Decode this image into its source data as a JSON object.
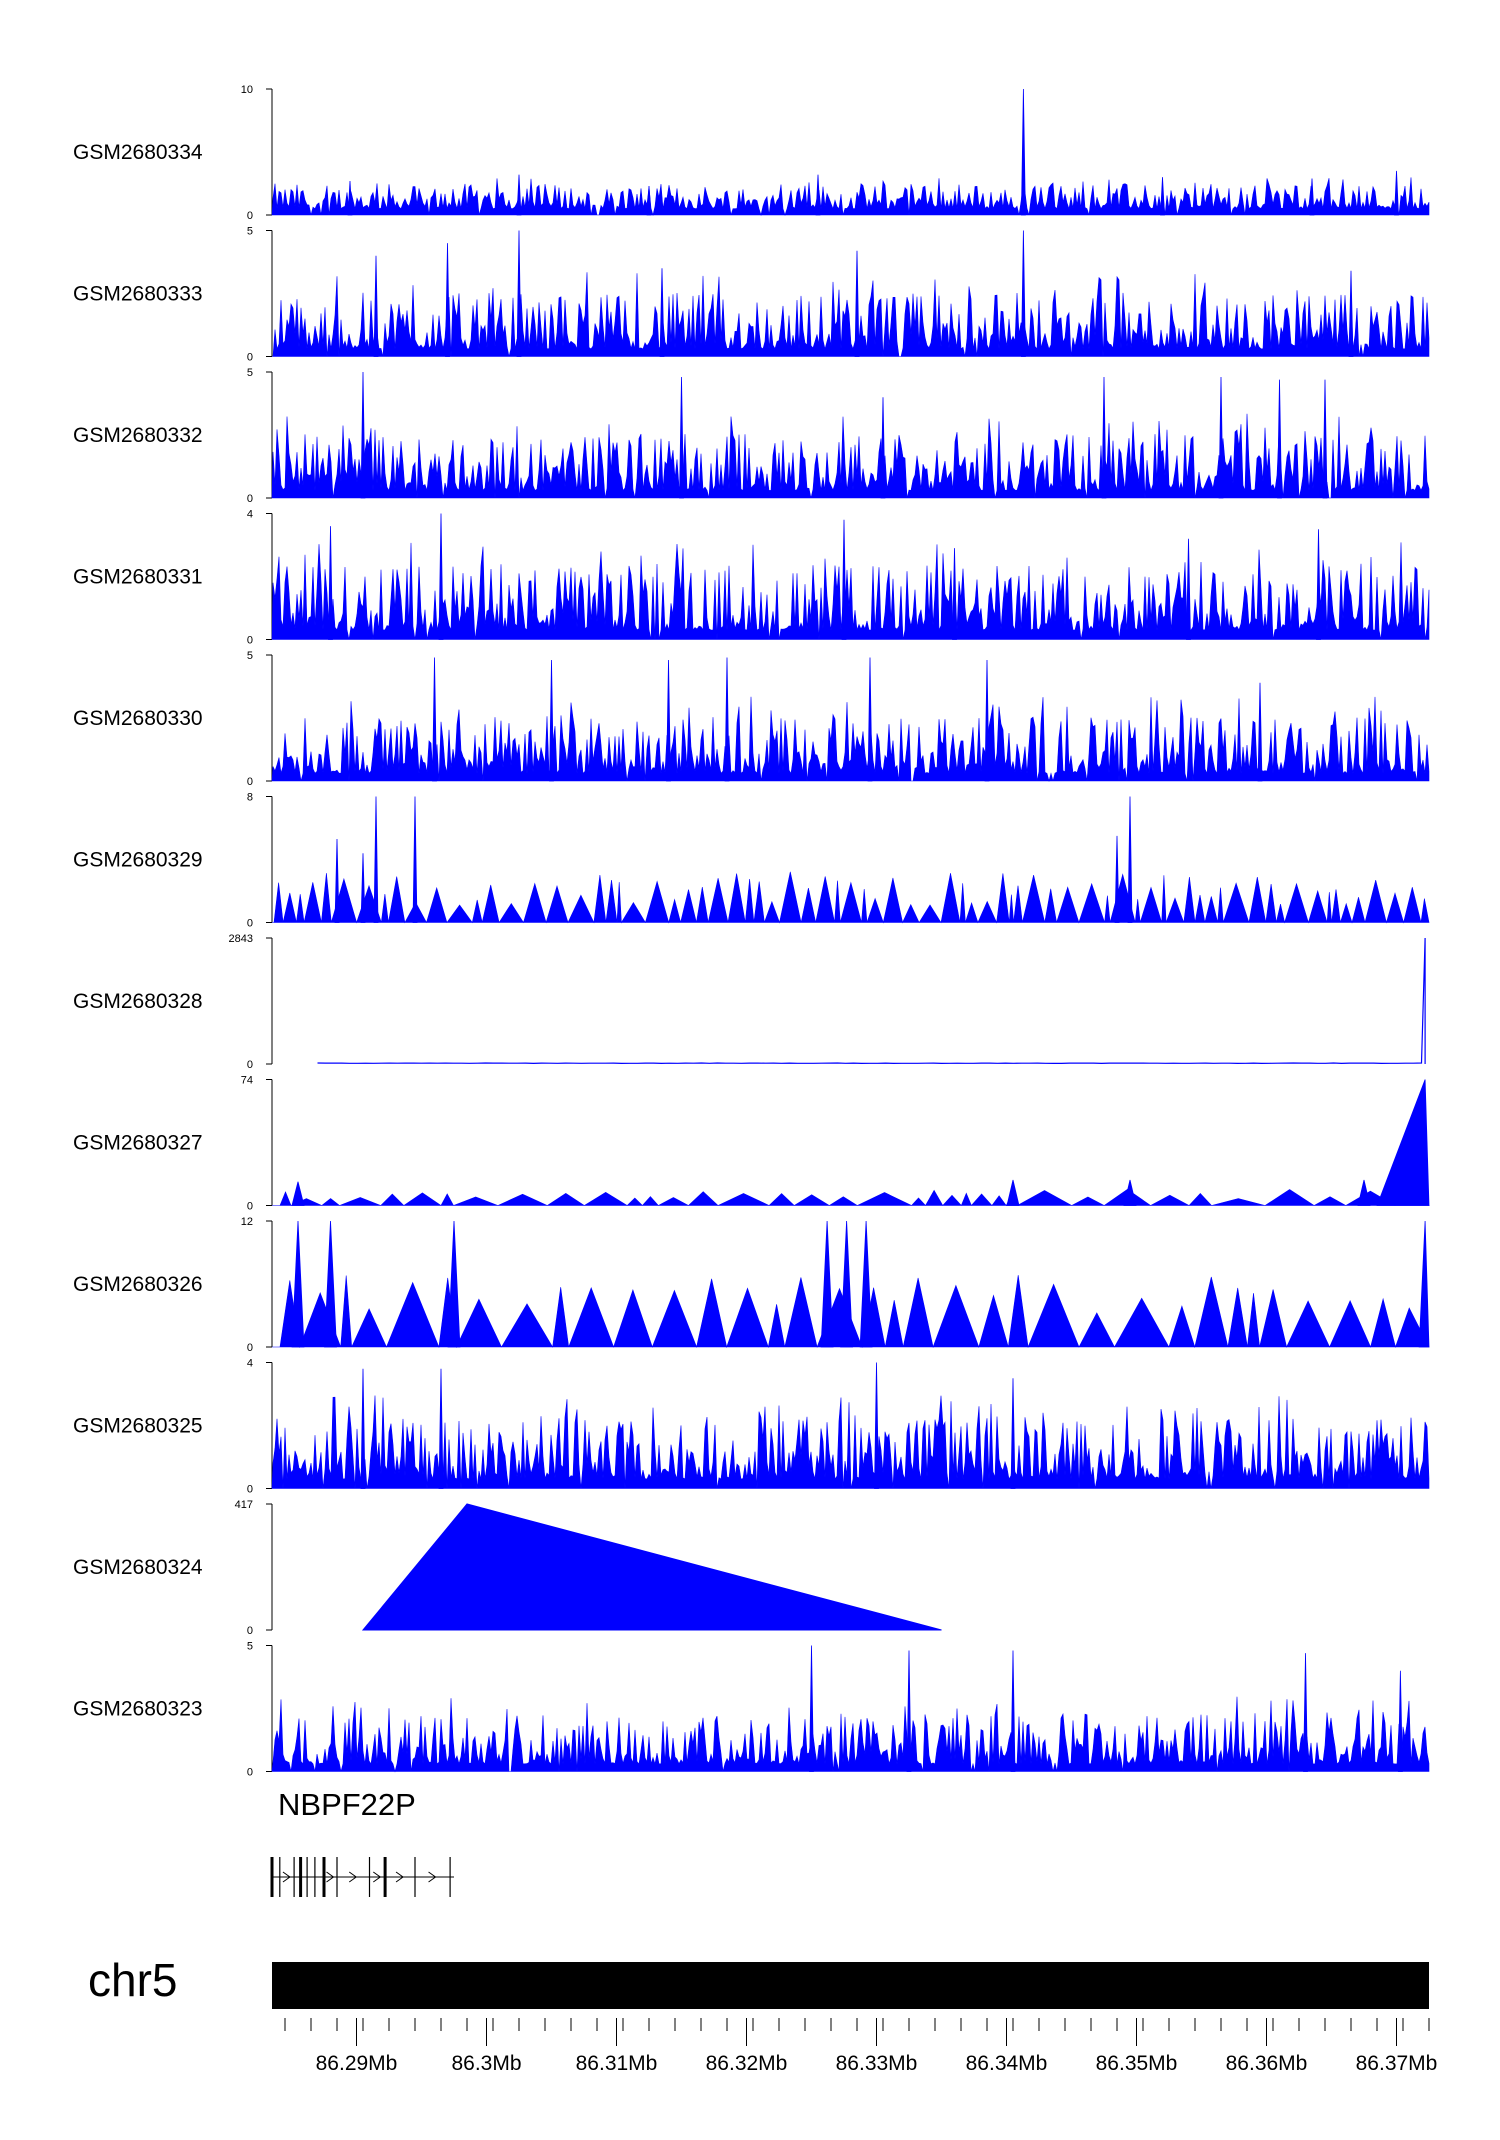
{
  "chart_data": {
    "type": "area",
    "colors": {
      "signal": "#0000ff",
      "axis": "#000000",
      "ideogram": "#000000"
    },
    "x_range": [
      86.2835,
      86.3725
    ],
    "x_unit": "Mb",
    "tracks": [
      {
        "name": "GSM2680334",
        "ylim": [
          0,
          10
        ],
        "ymin_label": "0",
        "ymax_label": "10",
        "profile": "dense",
        "baseline": 0.5,
        "typical_max": 2.5,
        "spikes": [
          {
            "x": 86.2895,
            "y": 2.7
          },
          {
            "x": 86.3025,
            "y": 3.2
          },
          {
            "x": 86.3125,
            "y": 2.3
          },
          {
            "x": 86.3255,
            "y": 3.2
          },
          {
            "x": 86.3413,
            "y": 10
          },
          {
            "x": 86.352,
            "y": 3.0
          },
          {
            "x": 86.3635,
            "y": 2.9
          },
          {
            "x": 86.37,
            "y": 3.5
          }
        ]
      },
      {
        "name": "GSM2680333",
        "ylim": [
          0,
          5
        ],
        "ymin_label": "0",
        "ymax_label": "5",
        "profile": "dense",
        "baseline": 0.3,
        "typical_max": 2.8,
        "spikes": [
          {
            "x": 86.2915,
            "y": 4.0
          },
          {
            "x": 86.297,
            "y": 4.5
          },
          {
            "x": 86.3025,
            "y": 5.0
          },
          {
            "x": 86.3135,
            "y": 3.5
          },
          {
            "x": 86.3285,
            "y": 4.2
          },
          {
            "x": 86.3413,
            "y": 5.0
          },
          {
            "x": 86.3665,
            "y": 3.4
          }
        ]
      },
      {
        "name": "GSM2680332",
        "ylim": [
          0,
          5
        ],
        "ymin_label": "0",
        "ymax_label": "5",
        "profile": "dense",
        "baseline": 0.3,
        "typical_max": 2.8,
        "spikes": [
          {
            "x": 86.2905,
            "y": 5.0
          },
          {
            "x": 86.315,
            "y": 4.8
          },
          {
            "x": 86.3305,
            "y": 4.0
          },
          {
            "x": 86.3475,
            "y": 4.8
          },
          {
            "x": 86.3565,
            "y": 4.8
          },
          {
            "x": 86.361,
            "y": 4.7
          },
          {
            "x": 86.3645,
            "y": 4.7
          }
        ]
      },
      {
        "name": "GSM2680331",
        "ylim": [
          0,
          4
        ],
        "ymin_label": "0",
        "ymax_label": "4",
        "profile": "dense",
        "baseline": 0.3,
        "typical_max": 2.6,
        "spikes": [
          {
            "x": 86.288,
            "y": 3.6
          },
          {
            "x": 86.2965,
            "y": 4.0
          },
          {
            "x": 86.3275,
            "y": 3.8
          },
          {
            "x": 86.336,
            "y": 2.9
          },
          {
            "x": 86.354,
            "y": 3.2
          },
          {
            "x": 86.364,
            "y": 3.5
          }
        ]
      },
      {
        "name": "GSM2680330",
        "ylim": [
          0,
          5
        ],
        "ymin_label": "0",
        "ymax_label": "5",
        "profile": "dense",
        "baseline": 0.3,
        "typical_max": 2.8,
        "spikes": [
          {
            "x": 86.296,
            "y": 4.9
          },
          {
            "x": 86.305,
            "y": 4.8
          },
          {
            "x": 86.314,
            "y": 4.8
          },
          {
            "x": 86.3185,
            "y": 4.9
          },
          {
            "x": 86.3295,
            "y": 4.9
          },
          {
            "x": 86.3385,
            "y": 4.8
          },
          {
            "x": 86.3595,
            "y": 3.9
          }
        ]
      },
      {
        "name": "GSM2680329",
        "ylim": [
          0,
          8
        ],
        "ymin_label": "0",
        "ymax_label": "8",
        "profile": "sparse",
        "baseline": 0,
        "typical_max": 2.7,
        "spikes": [
          {
            "x": 86.2915,
            "y": 8.0
          },
          {
            "x": 86.2945,
            "y": 8.0
          },
          {
            "x": 86.2905,
            "y": 4.4
          },
          {
            "x": 86.2885,
            "y": 5.3
          },
          {
            "x": 86.3495,
            "y": 8.0
          },
          {
            "x": 86.3485,
            "y": 5.5
          }
        ]
      },
      {
        "name": "GSM2680328",
        "ylim": [
          0,
          2843
        ],
        "ymin_label": "0",
        "ymax_label": "2843",
        "profile": "flat",
        "baseline": 18,
        "typical_max": 30,
        "spikes": [
          {
            "x": 86.3722,
            "y": 2843
          }
        ]
      },
      {
        "name": "GSM2680327",
        "ylim": [
          0,
          74
        ],
        "ymin_label": "0",
        "ymax_label": "74",
        "profile": "triangles",
        "baseline": 0,
        "typical_max": 8,
        "spikes": [
          {
            "x": 86.2855,
            "y": 14
          },
          {
            "x": 86.3405,
            "y": 15
          },
          {
            "x": 86.3495,
            "y": 15
          },
          {
            "x": 86.3675,
            "y": 15
          },
          {
            "x": 86.3722,
            "y": 74
          }
        ]
      },
      {
        "name": "GSM2680326",
        "ylim": [
          0,
          12
        ],
        "ymin_label": "0",
        "ymax_label": "12",
        "profile": "triangles",
        "baseline": 0,
        "typical_max": 6,
        "spikes": [
          {
            "x": 86.2855,
            "y": 12
          },
          {
            "x": 86.288,
            "y": 12
          },
          {
            "x": 86.2975,
            "y": 12
          },
          {
            "x": 86.3262,
            "y": 12
          },
          {
            "x": 86.3277,
            "y": 12
          },
          {
            "x": 86.3292,
            "y": 12
          },
          {
            "x": 86.3722,
            "y": 12
          }
        ]
      },
      {
        "name": "GSM2680325",
        "ylim": [
          0,
          4
        ],
        "ymin_label": "0",
        "ymax_label": "4",
        "profile": "dense",
        "baseline": 0.3,
        "typical_max": 2.5,
        "spikes": [
          {
            "x": 86.2905,
            "y": 3.8
          },
          {
            "x": 86.2965,
            "y": 3.8
          },
          {
            "x": 86.33,
            "y": 4.0
          },
          {
            "x": 86.3405,
            "y": 3.5
          }
        ]
      },
      {
        "name": "GSM2680324",
        "ylim": [
          0,
          417
        ],
        "ymin_label": "0",
        "ymax_label": "417",
        "profile": "single",
        "points": [
          {
            "x": 86.2905,
            "y": 0
          },
          {
            "x": 86.2985,
            "y": 417
          },
          {
            "x": 86.335,
            "y": 0
          }
        ]
      },
      {
        "name": "GSM2680323",
        "ylim": [
          0,
          5
        ],
        "ymin_label": "0",
        "ymax_label": "5",
        "profile": "dense",
        "baseline": 0.3,
        "typical_max": 2.5,
        "spikes": [
          {
            "x": 86.325,
            "y": 5.0
          },
          {
            "x": 86.3325,
            "y": 4.8
          },
          {
            "x": 86.3405,
            "y": 4.8
          },
          {
            "x": 86.363,
            "y": 4.7
          },
          {
            "x": 86.3703,
            "y": 4.0
          }
        ]
      }
    ],
    "gene": {
      "name": "NBPF22P",
      "start": 86.2835,
      "end": 86.2975,
      "strand": "+",
      "exons": [
        86.2835,
        86.2841,
        86.2852,
        86.2857,
        86.2862,
        86.2868,
        86.2875,
        86.2885,
        86.291,
        86.2922,
        86.2945,
        86.2972
      ]
    },
    "chromosome": "chr5",
    "x_ticks": [
      "86.29Mb",
      "86.3Mb",
      "86.31Mb",
      "86.32Mb",
      "86.33Mb",
      "86.34Mb",
      "86.35Mb",
      "86.36Mb",
      "86.37Mb"
    ],
    "x_tick_values": [
      86.29,
      86.3,
      86.31,
      86.32,
      86.33,
      86.34,
      86.35,
      86.36,
      86.37
    ],
    "minor_tick_step": 0.002
  }
}
